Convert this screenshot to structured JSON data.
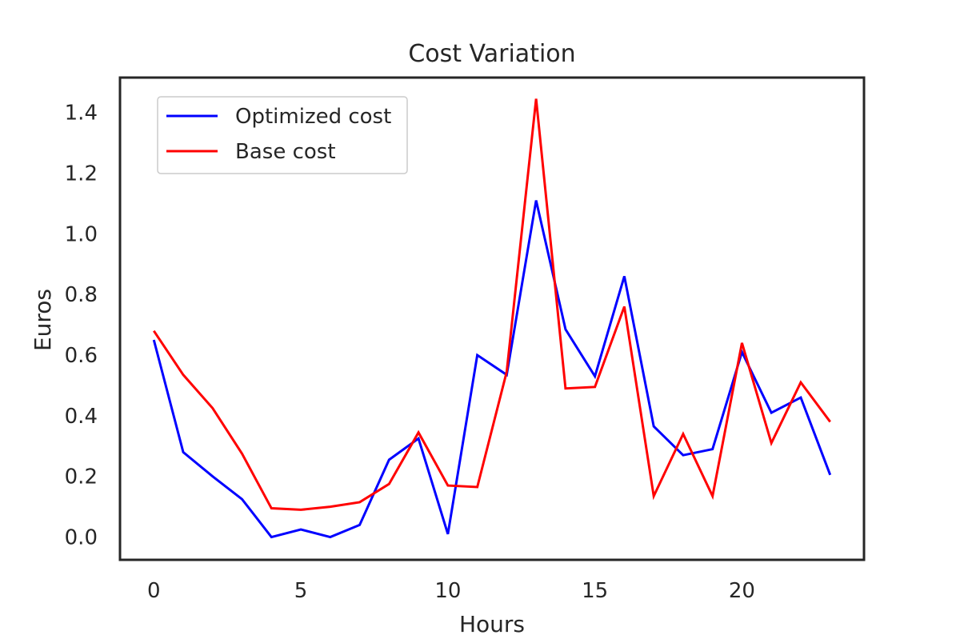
{
  "chart_data": {
    "type": "line",
    "title": "Cost Variation",
    "xlabel": "Hours",
    "ylabel": "Euros",
    "xlim": [
      -1.15,
      24.15
    ],
    "ylim": [
      -0.075,
      1.515
    ],
    "xticks": [
      0,
      5,
      10,
      15,
      20
    ],
    "xtick_labels": [
      "0",
      "5",
      "10",
      "15",
      "20"
    ],
    "yticks": [
      0.0,
      0.2,
      0.4,
      0.6,
      0.8,
      1.0,
      1.2,
      1.4
    ],
    "ytick_labels": [
      "0.0",
      "0.2",
      "0.4",
      "0.6",
      "0.8",
      "1.0",
      "1.2",
      "1.4"
    ],
    "grid": false,
    "legend_position": "upper-left",
    "x": [
      0,
      1,
      2,
      3,
      4,
      5,
      6,
      7,
      8,
      9,
      10,
      11,
      12,
      13,
      14,
      15,
      16,
      17,
      18,
      19,
      20,
      21,
      22,
      23
    ],
    "series": [
      {
        "name": "Optimized cost",
        "color": "#0000ff",
        "values": [
          0.65,
          0.28,
          0.2,
          0.125,
          0.0,
          0.025,
          0.0,
          0.04,
          0.255,
          0.325,
          0.01,
          0.6,
          0.535,
          1.11,
          0.685,
          0.53,
          0.86,
          0.365,
          0.27,
          0.29,
          0.61,
          0.41,
          0.46,
          0.205
        ]
      },
      {
        "name": "Base cost",
        "color": "#ff0000",
        "values": [
          0.68,
          0.535,
          0.425,
          0.275,
          0.095,
          0.09,
          0.1,
          0.115,
          0.175,
          0.345,
          0.17,
          0.165,
          0.545,
          1.445,
          0.49,
          0.495,
          0.76,
          0.135,
          0.34,
          0.135,
          0.64,
          0.31,
          0.51,
          0.38
        ]
      }
    ]
  }
}
